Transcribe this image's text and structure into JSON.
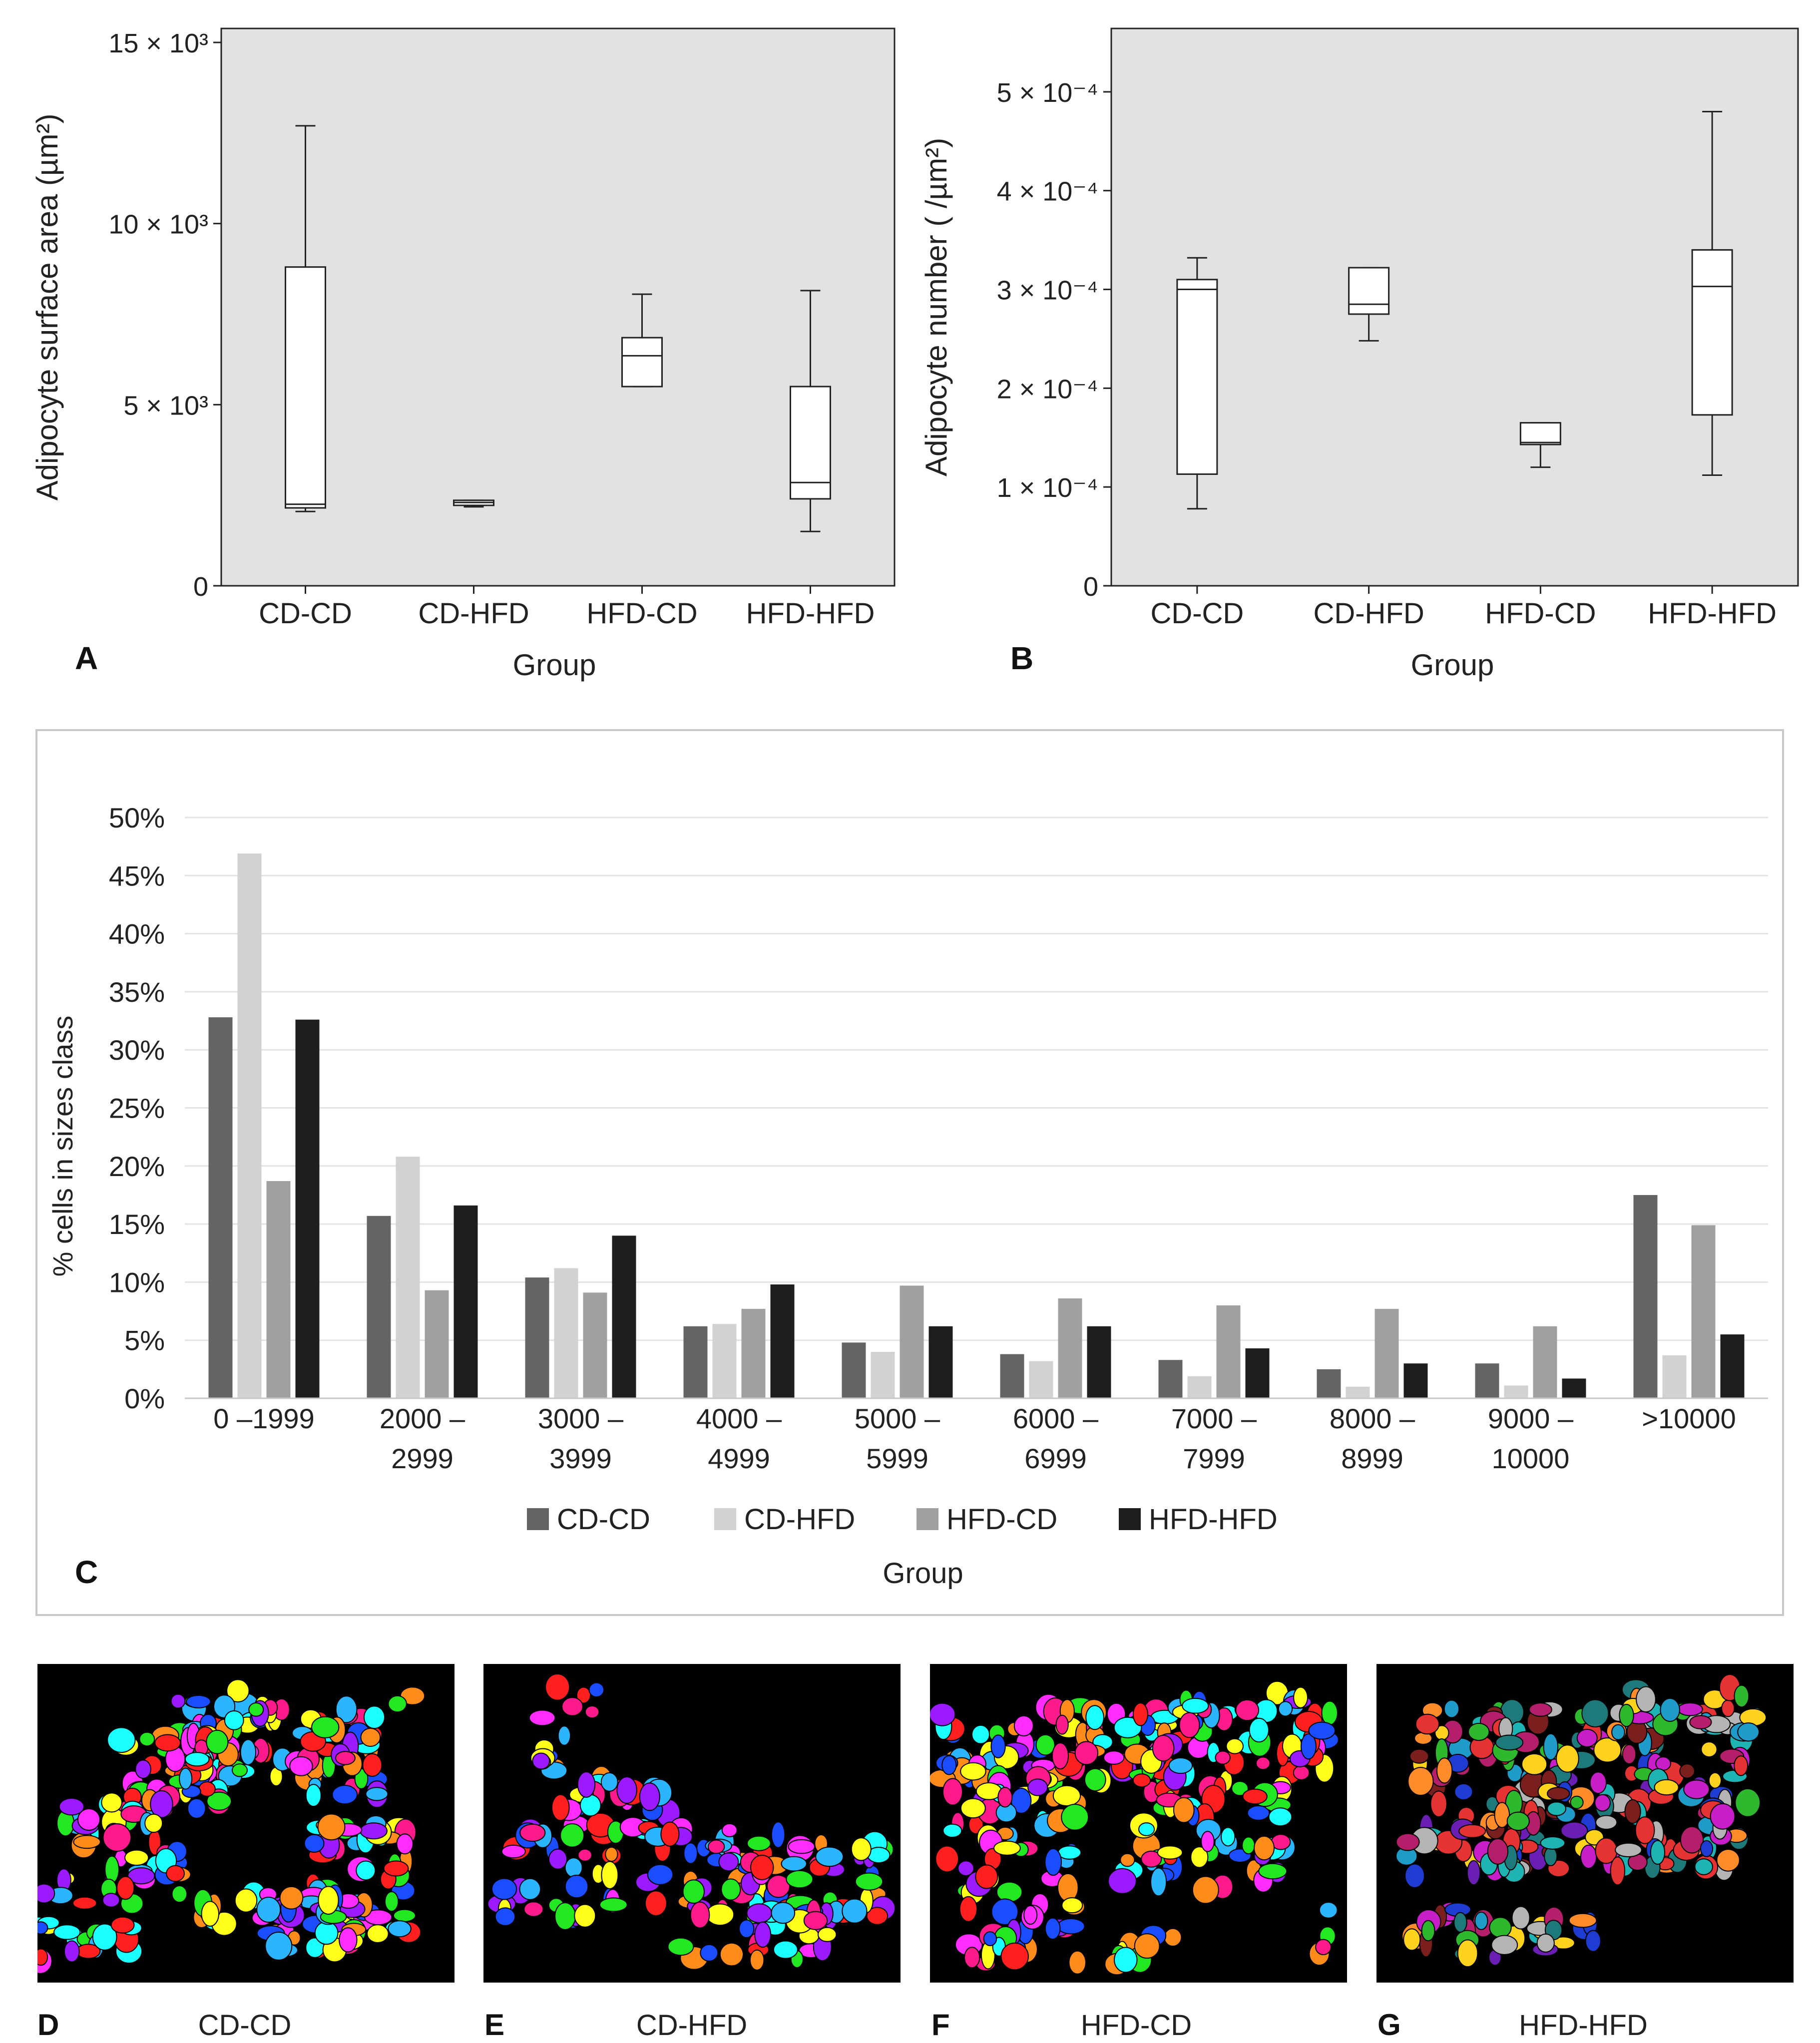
{
  "chart_data": [
    {
      "panel": "A",
      "type": "box",
      "title": "",
      "xlabel": "Group",
      "ylabel": "Adipocyte surface area (µm²)",
      "ylim": [
        0,
        15000
      ],
      "yticks": [
        {
          "value": 0,
          "label": "0"
        },
        {
          "value": 5000,
          "label": "5 × 10³"
        },
        {
          "value": 10000,
          "label": "10 × 10³"
        },
        {
          "value": 15000,
          "label": "15 × 10³"
        }
      ],
      "categories": [
        "CD-CD",
        "CD-HFD",
        "HFD-CD",
        "HFD-HFD"
      ],
      "boxes": [
        {
          "min": 2050,
          "q1": 2150,
          "median": 2250,
          "q3": 8800,
          "max": 12700
        },
        {
          "min": 2180,
          "q1": 2220,
          "median": 2300,
          "q3": 2360,
          "max": 2360
        },
        {
          "min": 5500,
          "q1": 5500,
          "median": 6350,
          "q3": 6850,
          "max": 8050
        },
        {
          "min": 1500,
          "q1": 2400,
          "median": 2850,
          "q3": 5500,
          "max": 8150
        }
      ],
      "bg_color": "#e2e2e2"
    },
    {
      "panel": "B",
      "type": "box",
      "title": "",
      "xlabel": "Group",
      "ylabel": "Adipocyte number ( /µm²)",
      "ylim": [
        0,
        0.00055
      ],
      "yticks": [
        {
          "value": 0,
          "label": "0"
        },
        {
          "value": 0.0001,
          "label": "1 × 10⁻⁴"
        },
        {
          "value": 0.0002,
          "label": "2 × 10⁻⁴"
        },
        {
          "value": 0.0003,
          "label": "3 × 10⁻⁴"
        },
        {
          "value": 0.0004,
          "label": "4 × 10⁻⁴"
        },
        {
          "value": 0.0005,
          "label": "5 × 10⁻⁴"
        }
      ],
      "categories": [
        "CD-CD",
        "CD-HFD",
        "HFD-CD",
        "HFD-HFD"
      ],
      "boxes": [
        {
          "min": 7.8e-05,
          "q1": 0.000113,
          "median": 0.0003,
          "q3": 0.00031,
          "max": 0.000332
        },
        {
          "min": 0.000248,
          "q1": 0.000275,
          "median": 0.000285,
          "q3": 0.000322,
          "max": 0.000322
        },
        {
          "min": 0.00012,
          "q1": 0.000143,
          "median": 0.000145,
          "q3": 0.000165,
          "max": 0.000165
        },
        {
          "min": 0.000112,
          "q1": 0.000173,
          "median": 0.000303,
          "q3": 0.00034,
          "max": 0.00048
        }
      ],
      "bg_color": "#e2e2e2"
    },
    {
      "panel": "C",
      "type": "bar",
      "title": "",
      "xlabel": "Group",
      "ylabel": "% cells in sizes class",
      "ylim": [
        0,
        50
      ],
      "yticks": [
        "0%",
        "5%",
        "10%",
        "15%",
        "20%",
        "25%",
        "30%",
        "35%",
        "40%",
        "45%",
        "50%"
      ],
      "categories": [
        [
          "0 –1999"
        ],
        [
          "2000 –",
          "2999"
        ],
        [
          "3000 –",
          "3999"
        ],
        [
          "4000 –",
          "4999"
        ],
        [
          "5000 –",
          "5999"
        ],
        [
          "6000 –",
          "6999"
        ],
        [
          "7000 –",
          "7999"
        ],
        [
          "8000 –",
          "8999"
        ],
        [
          "9000 –",
          "10000"
        ],
        [
          ">10000"
        ]
      ],
      "series": [
        {
          "name": "CD-CD",
          "color": "#646464",
          "values": [
            32.8,
            15.7,
            10.4,
            6.2,
            4.8,
            3.8,
            3.3,
            2.5,
            3.0,
            17.5
          ]
        },
        {
          "name": "CD-HFD",
          "color": "#d2d2d2",
          "values": [
            46.9,
            20.8,
            11.2,
            6.4,
            4.0,
            3.2,
            1.9,
            1.0,
            1.1,
            3.7
          ]
        },
        {
          "name": "HFD-CD",
          "color": "#a0a0a0",
          "values": [
            18.7,
            9.3,
            9.1,
            7.7,
            9.7,
            8.6,
            8.0,
            7.7,
            6.2,
            14.9
          ]
        },
        {
          "name": "HFD-HFD",
          "color": "#1e1e1e",
          "values": [
            32.6,
            16.6,
            14.0,
            9.8,
            6.2,
            6.2,
            4.3,
            3.0,
            1.7,
            5.5
          ]
        }
      ],
      "legend_position": "bottom",
      "grid": true
    }
  ],
  "panel_letters": {
    "A": "A",
    "B": "B",
    "C": "C",
    "D": "D",
    "E": "E",
    "F": "F",
    "G": "G"
  },
  "images": [
    {
      "panel": "D",
      "caption": "CD-CD"
    },
    {
      "panel": "E",
      "caption": "CD-HFD"
    },
    {
      "panel": "F",
      "caption": "HFD-CD"
    },
    {
      "panel": "G",
      "caption": "HFD-HFD"
    }
  ]
}
